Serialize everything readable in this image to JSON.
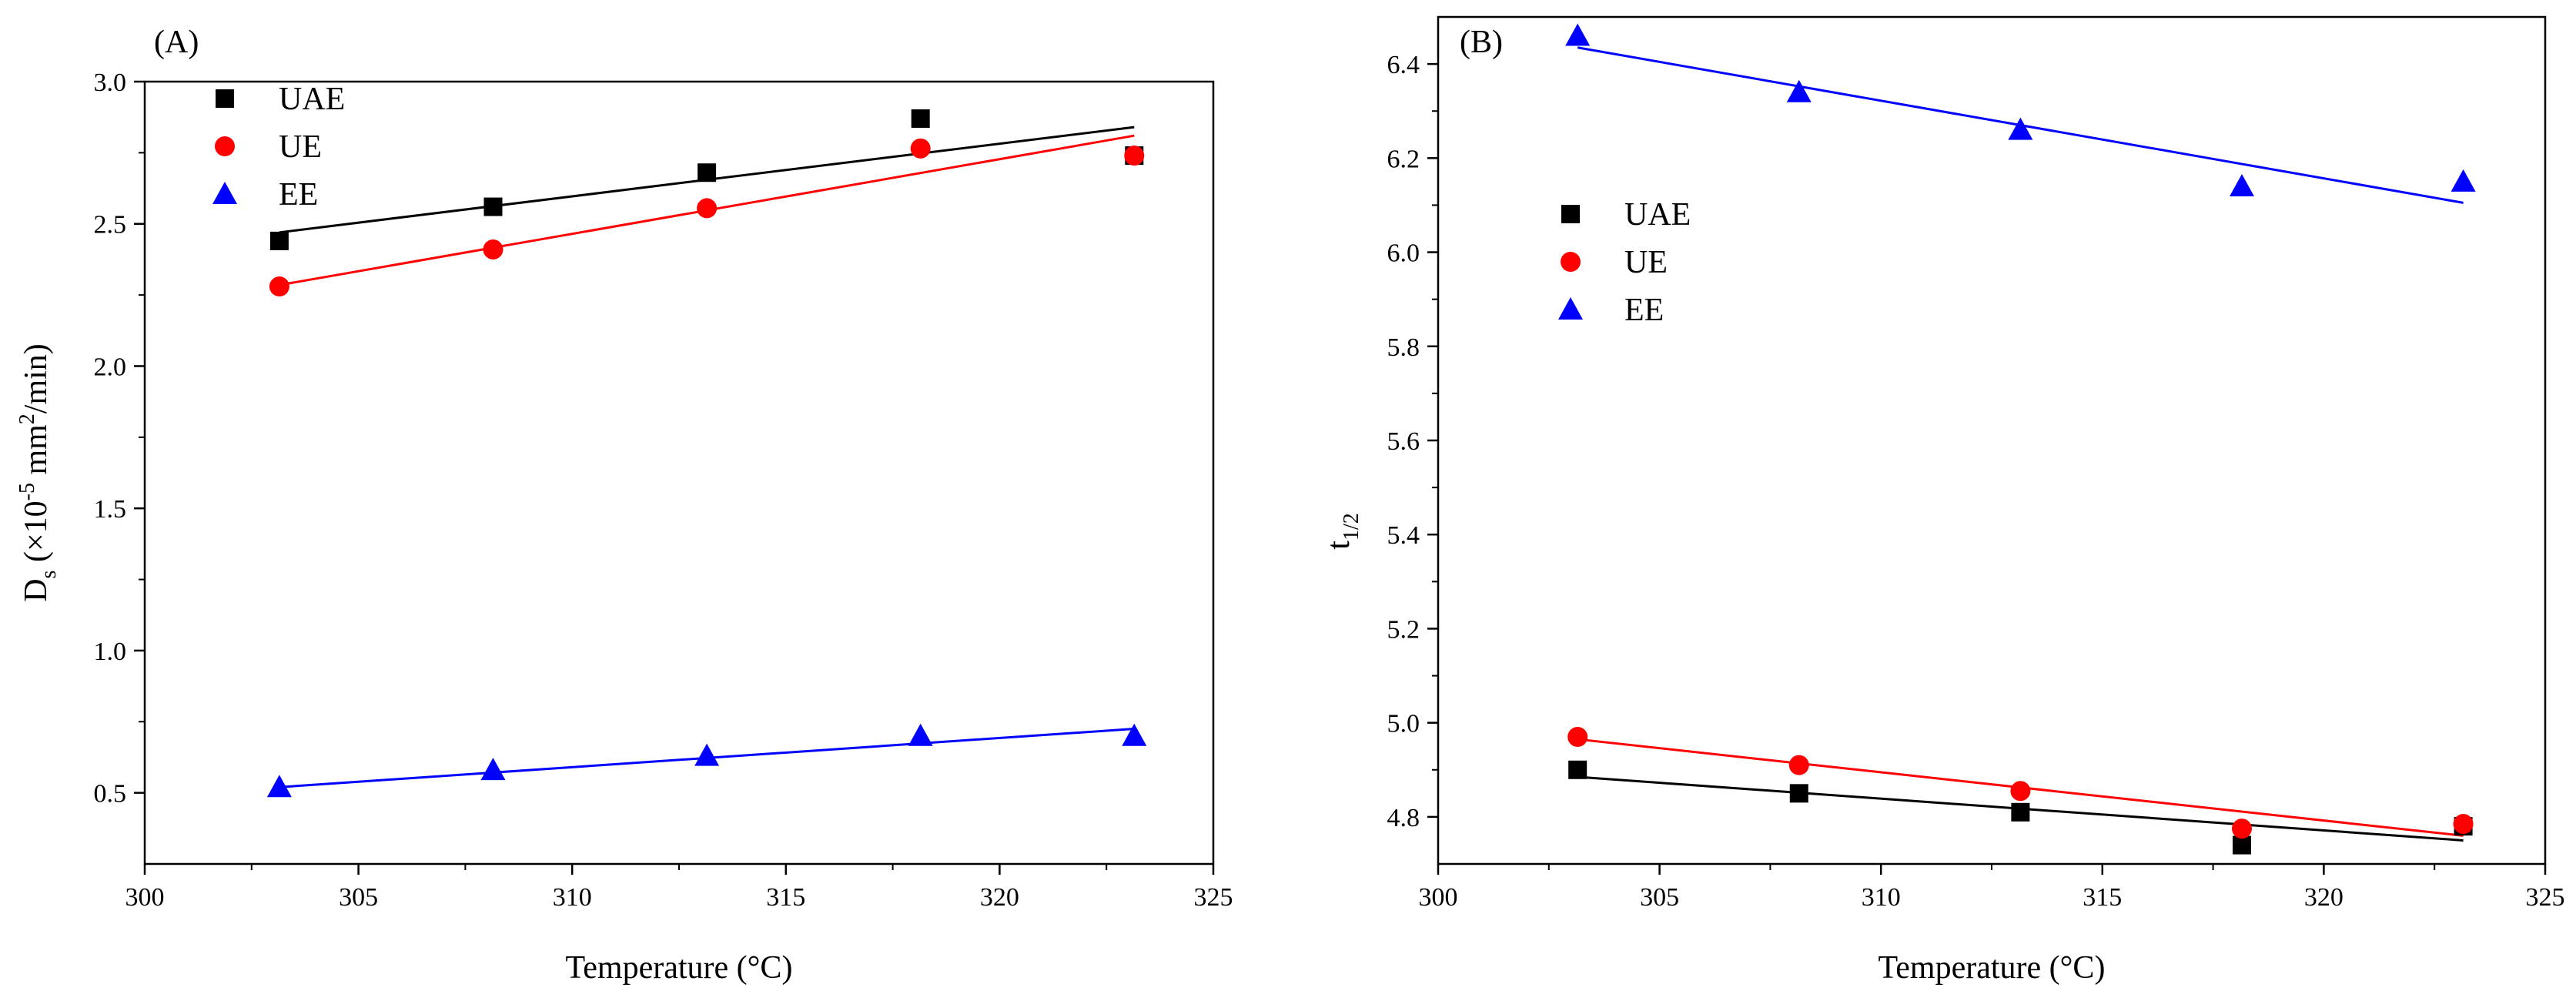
{
  "chart_data": [
    {
      "type": "scatter",
      "panel_label": "(A)",
      "xlabel": "Temperature (°C)",
      "ylabel": {
        "main": "D",
        "sub": "s",
        "mid": " (×10",
        "sup1": "-5",
        "mid2": " mm",
        "sup2": "2",
        "end": "/min)"
      },
      "xlim": [
        300,
        325
      ],
      "ylim": [
        0.25,
        3.0
      ],
      "xticks": [
        "300",
        "305",
        "310",
        "315",
        "320",
        "325"
      ],
      "yticks": [
        "0.5",
        "1.0",
        "1.5",
        "2.0",
        "2.5",
        "3.0"
      ],
      "legend_position": "top-left",
      "series": [
        {
          "name": "UAE",
          "marker": "square",
          "color": "#000000",
          "x": [
            303.15,
            308.15,
            313.15,
            318.15,
            323.15
          ],
          "y": [
            2.44,
            2.56,
            2.68,
            2.87,
            2.74
          ],
          "fit": [
            2.47,
            2.84
          ]
        },
        {
          "name": "UE",
          "marker": "circle",
          "color": "#ff0000",
          "x": [
            303.15,
            308.15,
            313.15,
            318.15,
            323.15
          ],
          "y": [
            2.28,
            2.41,
            2.555,
            2.765,
            2.74
          ],
          "fit": [
            2.285,
            2.81
          ]
        },
        {
          "name": "EE",
          "marker": "triangle",
          "color": "#0000ff",
          "x": [
            303.15,
            308.15,
            313.15,
            318.15,
            323.15
          ],
          "y": [
            0.52,
            0.58,
            0.63,
            0.7,
            0.7
          ],
          "fit": [
            0.52,
            0.725
          ]
        }
      ]
    },
    {
      "type": "scatter",
      "panel_label": "(B)",
      "xlabel": "Temperature (°C)",
      "ylabel": {
        "main": "t",
        "sub": "1/2"
      },
      "xlim": [
        300,
        325
      ],
      "ylim": [
        4.7,
        6.5
      ],
      "xticks": [
        "300",
        "305",
        "310",
        "315",
        "320",
        "325"
      ],
      "yticks": [
        "4.8",
        "5.0",
        "5.2",
        "5.4",
        "5.6",
        "5.8",
        "6.0",
        "6.2",
        "6.4"
      ],
      "legend_position": "upper-left",
      "series": [
        {
          "name": "UAE",
          "marker": "square",
          "color": "#000000",
          "x": [
            303.15,
            308.15,
            313.15,
            318.15,
            323.15
          ],
          "y": [
            4.9,
            4.85,
            4.81,
            4.74,
            4.78
          ],
          "fit": [
            4.885,
            4.75
          ]
        },
        {
          "name": "UE",
          "marker": "circle",
          "color": "#ff0000",
          "x": [
            303.15,
            308.15,
            313.15,
            318.15,
            323.15
          ],
          "y": [
            4.97,
            4.91,
            4.855,
            4.775,
            4.785
          ],
          "fit": [
            4.965,
            4.76
          ]
        },
        {
          "name": "EE",
          "marker": "triangle",
          "color": "#0000ff",
          "x": [
            303.15,
            308.15,
            313.15,
            318.15,
            323.15
          ],
          "y": [
            6.46,
            6.34,
            6.26,
            6.14,
            6.15
          ],
          "fit": [
            6.435,
            6.105
          ]
        }
      ]
    }
  ]
}
